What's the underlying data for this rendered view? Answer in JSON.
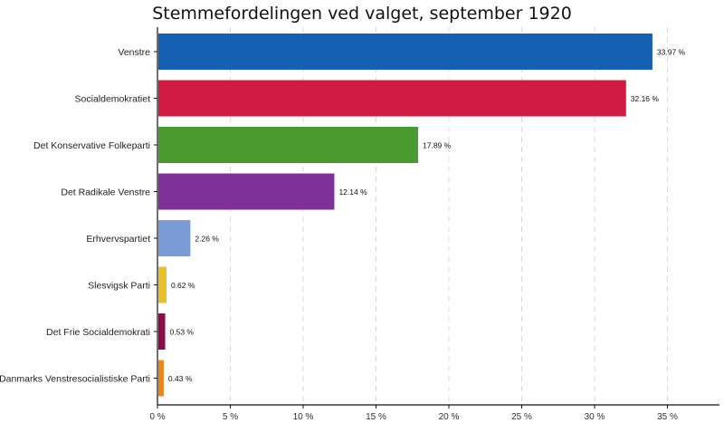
{
  "chart_data": {
    "type": "bar",
    "orientation": "horizontal",
    "title": "Stemmefordelingen ved valget, september 1920",
    "categories": [
      "Venstre",
      "Socialdemokratiet",
      "Det Konservative Folkeparti",
      "Det Radikale Venstre",
      "Erhvervspartiet",
      "Slesvigsk Parti",
      "Det Frie Socialdemokrati",
      "Danmarks Venstresocialistiske Parti"
    ],
    "values": [
      33.97,
      32.16,
      17.89,
      12.14,
      2.26,
      0.62,
      0.53,
      0.43
    ],
    "value_labels": [
      "33.97 %",
      "32.16 %",
      "17.89 %",
      "12.14 %",
      "2.26 %",
      "0.62 %",
      "0.53 %",
      "0.43 %"
    ],
    "colors": [
      "#1560b3",
      "#d11a42",
      "#4b9a2f",
      "#7e3198",
      "#7a9bd6",
      "#e8c12a",
      "#8c0c48",
      "#e8861b"
    ],
    "xticks": [
      0,
      5,
      10,
      15,
      20,
      25,
      30,
      35
    ],
    "xtick_labels": [
      "0 %",
      "5 %",
      "10 %",
      "15 %",
      "20 %",
      "25 %",
      "30 %",
      "35 %"
    ],
    "xlim": [
      0,
      38
    ],
    "grid": "vertical dashed"
  }
}
